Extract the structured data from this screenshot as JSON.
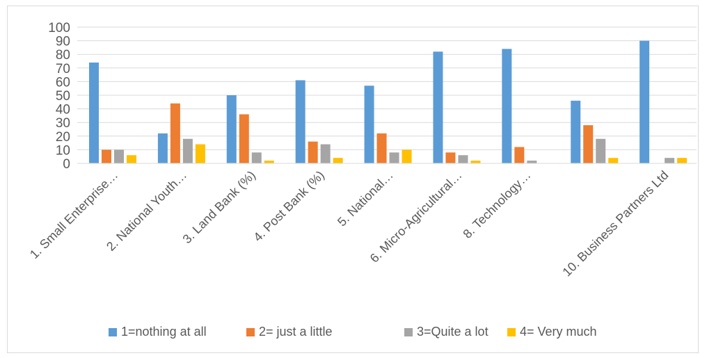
{
  "chart_data": {
    "type": "bar",
    "categories": [
      "1. Small Enterprise…",
      "2. National Youth…",
      "3. Land Bank (%)",
      "4. Post Bank (%)",
      "5. National…",
      "6. Micro-Agricultural…",
      "8. Technology…",
      "",
      "10. Business Partners Ltd"
    ],
    "series": [
      {
        "name": "1=nothing at all",
        "color": "#5B9BD5",
        "values": [
          74,
          22,
          50,
          61,
          57,
          82,
          84,
          46,
          90
        ]
      },
      {
        "name": "2= just a little",
        "color": "#ED7D31",
        "values": [
          10,
          44,
          36,
          16,
          22,
          8,
          12,
          28,
          0
        ]
      },
      {
        "name": "3=Quite a lot",
        "color": "#A5A5A5",
        "values": [
          10,
          18,
          8,
          14,
          8,
          6,
          2,
          18,
          4
        ]
      },
      {
        "name": "4= Very much",
        "color": "#FFC000",
        "values": [
          6,
          14,
          2,
          4,
          10,
          2,
          0,
          4,
          4
        ]
      }
    ],
    "yticks": [
      "0",
      "10",
      "20",
      "30",
      "40",
      "50",
      "60",
      "70",
      "80",
      "90",
      "100"
    ],
    "ylim": [
      0,
      100
    ],
    "grid": true,
    "legend_position": "bottom",
    "title": "",
    "xlabel": "",
    "ylabel": ""
  }
}
